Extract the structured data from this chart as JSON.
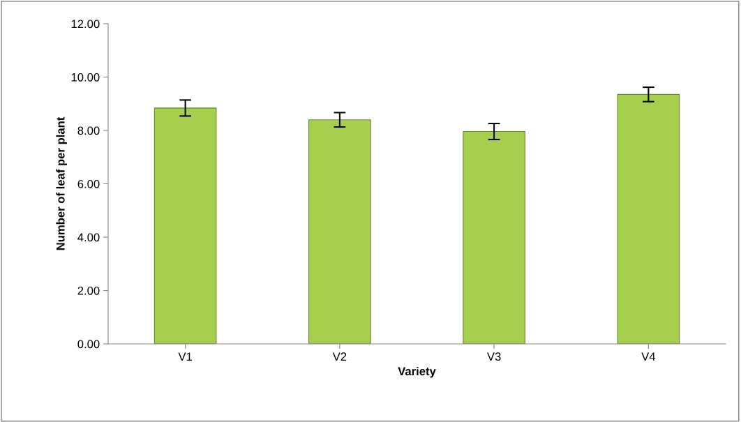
{
  "chart_data": {
    "type": "bar",
    "xlabel": "Variety",
    "ylabel": "Number of leaf per plant",
    "categories": [
      "V1",
      "V2",
      "V3",
      "V4"
    ],
    "values": [
      8.84,
      8.4,
      7.96,
      9.35
    ],
    "errors": [
      0.3,
      0.27,
      0.3,
      0.27
    ],
    "color": "#a6cf50",
    "ylim": [
      0,
      12
    ],
    "yticks": [
      {
        "value": 0,
        "label": "0.00"
      },
      {
        "value": 2,
        "label": "2.00"
      },
      {
        "value": 4,
        "label": "4.00"
      },
      {
        "value": 6,
        "label": "6.00"
      },
      {
        "value": 8,
        "label": "8.00"
      },
      {
        "value": 10,
        "label": "10.00"
      },
      {
        "value": 12,
        "label": "12.00"
      }
    ]
  }
}
